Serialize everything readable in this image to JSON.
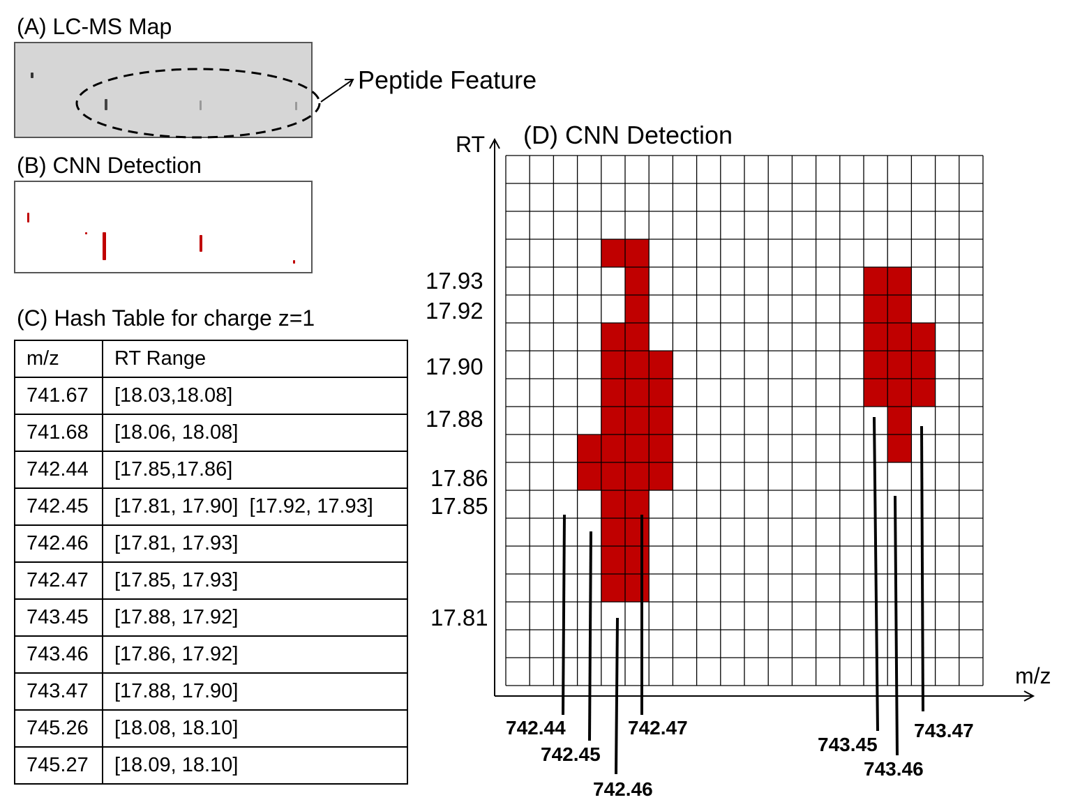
{
  "panel_a": {
    "title": "(A) LC-MS Map"
  },
  "feature_label": "Peptide Feature",
  "panel_b": {
    "title": "(B) CNN Detection"
  },
  "panel_c": {
    "title": "(C) Hash Table for charge z=1",
    "headers": [
      "m/z",
      "RT Range"
    ],
    "rows": [
      [
        "741.67",
        "[18.03,18.08]"
      ],
      [
        "741.68",
        "[18.06, 18.08]"
      ],
      [
        "742.44",
        "[17.85,17.86]"
      ],
      [
        "742.45",
        "[17.81, 17.90]  [17.92, 17.93]"
      ],
      [
        "742.46",
        "[17.81, 17.93]"
      ],
      [
        "742.47",
        "[17.85, 17.93]"
      ],
      [
        "743.45",
        "[17.88, 17.92]"
      ],
      [
        "743.46",
        "[17.86, 17.92]"
      ],
      [
        "743.47",
        "[17.88, 17.90]"
      ],
      [
        "745.26",
        "[18.08, 18.10]"
      ],
      [
        "745.27",
        "[18.09, 18.10]"
      ]
    ]
  },
  "panel_d": {
    "title": "(D) CNN Detection",
    "y_axis_label": "RT",
    "x_axis_label": "m/z",
    "rt_ticks": [
      "17.93",
      "17.92",
      "17.90",
      "17.88",
      "17.86",
      "17.85",
      "17.81"
    ],
    "mz_labels": [
      "742.44",
      "742.45",
      "742.46",
      "742.47",
      "743.45",
      "743.46",
      "743.47"
    ],
    "grid_cols": 20,
    "grid_rows": 19,
    "filled_cells": [
      [
        3,
        4
      ],
      [
        3,
        5
      ],
      [
        4,
        5
      ],
      [
        4,
        15
      ],
      [
        4,
        16
      ],
      [
        5,
        5
      ],
      [
        5,
        15
      ],
      [
        5,
        16
      ],
      [
        6,
        4
      ],
      [
        6,
        5
      ],
      [
        6,
        15
      ],
      [
        6,
        16
      ],
      [
        6,
        17
      ],
      [
        7,
        4
      ],
      [
        7,
        5
      ],
      [
        7,
        6
      ],
      [
        7,
        15
      ],
      [
        7,
        16
      ],
      [
        7,
        17
      ],
      [
        8,
        4
      ],
      [
        8,
        5
      ],
      [
        8,
        6
      ],
      [
        8,
        15
      ],
      [
        8,
        16
      ],
      [
        8,
        17
      ],
      [
        9,
        4
      ],
      [
        9,
        5
      ],
      [
        9,
        6
      ],
      [
        9,
        16
      ],
      [
        10,
        3
      ],
      [
        10,
        4
      ],
      [
        10,
        5
      ],
      [
        10,
        6
      ],
      [
        10,
        16
      ],
      [
        11,
        3
      ],
      [
        11,
        4
      ],
      [
        11,
        5
      ],
      [
        11,
        6
      ],
      [
        12,
        4
      ],
      [
        12,
        5
      ],
      [
        13,
        4
      ],
      [
        13,
        5
      ],
      [
        14,
        4
      ],
      [
        14,
        5
      ],
      [
        15,
        4
      ],
      [
        15,
        5
      ]
    ],
    "fill_color": "#c00000"
  }
}
